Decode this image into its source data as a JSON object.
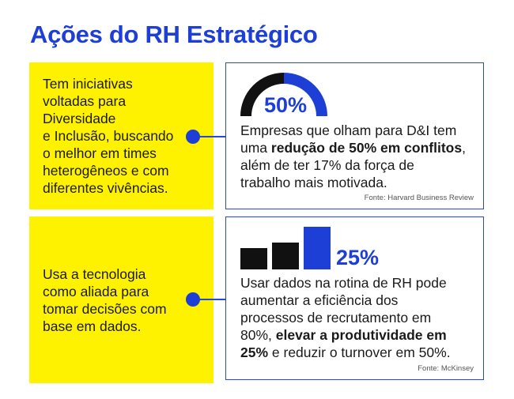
{
  "title": "Ações do RH Estratégico",
  "colors": {
    "accent": "#1d3fd6",
    "highlight": "#fff200",
    "dark": "#111111"
  },
  "sections": [
    {
      "left_lines": [
        "Tem iniciativas",
        "voltadas para Diversidade",
        "e Inclusão, buscando",
        "o melhor em times",
        "heterogêneos e com",
        "diferentes vivências."
      ],
      "stat": {
        "value": "50%",
        "level": 0.5,
        "icon": "half-gauge-icon"
      },
      "desc": {
        "line1": "Empresas que olham para D&I tem",
        "line2_pre": "uma ",
        "line2_bold": "redução de 50% em conflitos",
        "line2_post": ",",
        "line3": "além de ter 17% da força de",
        "line4": "trabalho mais motivada."
      },
      "source": "Fonte: Harvard Business Review"
    },
    {
      "left_lines": [
        "Usa a tecnologia",
        "como aliada para",
        "tomar decisões com",
        "base em dados."
      ],
      "stat": {
        "value": "25%",
        "icon": "bar-growth-icon",
        "bars": [
          1,
          1.25,
          2
        ]
      },
      "desc": {
        "line1": "Usar dados na rotina de RH pode",
        "line2": "aumentar a eficiência dos",
        "line3": "processos de recrutamento em",
        "line4_pre": "80%, ",
        "line4_bold": "elevar a produtividade em",
        "line5_bold": "25%",
        "line5_post": " e reduzir o turnover em 50%."
      },
      "source": "Fonte: McKinsey"
    }
  ]
}
